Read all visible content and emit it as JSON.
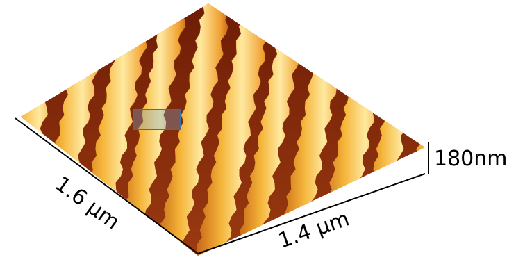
{
  "axes": {
    "x_label": "1.6 µm",
    "y_label": "1.4 µm",
    "z_label": "180nm"
  }
}
